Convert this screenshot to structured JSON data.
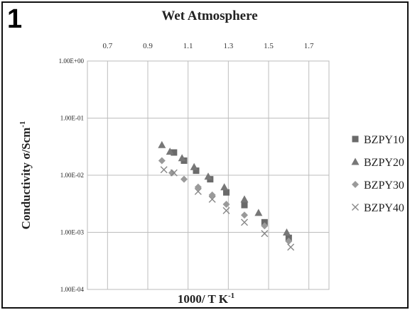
{
  "figure": {
    "panel_label": "1"
  },
  "chart_data": {
    "type": "scatter",
    "title": "Wet Atmosphere",
    "xlabel": "1000/ T K",
    "xlabel_sup": "-1",
    "ylabel": "Conductivity σ/Scm",
    "ylabel_sup": "-1",
    "x_axis_position": "top",
    "xlim": [
      0.6,
      1.8
    ],
    "xticks": [
      "0.7",
      "0.9",
      "1.1",
      "1.3",
      "1.5",
      "1.7"
    ],
    "y_scale": "log",
    "ylim": [
      0.0001,
      1
    ],
    "yticks": [
      "1.00E+00",
      "1.00E-01",
      "1.00E-02",
      "1.00E-03",
      "1.00E-04"
    ],
    "grid": true,
    "legend_position": "right",
    "series": [
      {
        "name": "BZPY10",
        "marker": "square",
        "color": "#6a6a6a",
        "points": [
          {
            "x": 1.03,
            "y": 0.025
          },
          {
            "x": 1.08,
            "y": 0.018
          },
          {
            "x": 1.14,
            "y": 0.012
          },
          {
            "x": 1.21,
            "y": 0.0085
          },
          {
            "x": 1.29,
            "y": 0.005
          },
          {
            "x": 1.38,
            "y": 0.003
          },
          {
            "x": 1.48,
            "y": 0.0015
          },
          {
            "x": 1.6,
            "y": 0.0008
          }
        ]
      },
      {
        "name": "BZPY20",
        "marker": "triangle",
        "color": "#777777",
        "points": [
          {
            "x": 0.97,
            "y": 0.034
          },
          {
            "x": 1.01,
            "y": 0.026
          },
          {
            "x": 1.07,
            "y": 0.02
          },
          {
            "x": 1.13,
            "y": 0.014
          },
          {
            "x": 1.2,
            "y": 0.0095
          },
          {
            "x": 1.28,
            "y": 0.0062
          },
          {
            "x": 1.38,
            "y": 0.0038
          },
          {
            "x": 1.45,
            "y": 0.0022
          },
          {
            "x": 1.59,
            "y": 0.001
          }
        ]
      },
      {
        "name": "BZPY30",
        "marker": "diamond",
        "color": "#9a9a9a",
        "points": [
          {
            "x": 0.97,
            "y": 0.018
          },
          {
            "x": 1.02,
            "y": 0.011
          },
          {
            "x": 1.08,
            "y": 0.0085
          },
          {
            "x": 1.15,
            "y": 0.0062
          },
          {
            "x": 1.22,
            "y": 0.0045
          },
          {
            "x": 1.29,
            "y": 0.0031
          },
          {
            "x": 1.38,
            "y": 0.002
          },
          {
            "x": 1.48,
            "y": 0.0013
          },
          {
            "x": 1.6,
            "y": 0.0007
          }
        ]
      },
      {
        "name": "BZPY40",
        "marker": "x",
        "color": "#888888",
        "points": [
          {
            "x": 0.98,
            "y": 0.0125
          },
          {
            "x": 1.03,
            "y": 0.011
          },
          {
            "x": 1.15,
            "y": 0.0052
          },
          {
            "x": 1.22,
            "y": 0.0038
          },
          {
            "x": 1.29,
            "y": 0.0024
          },
          {
            "x": 1.38,
            "y": 0.0015
          },
          {
            "x": 1.48,
            "y": 0.00095
          },
          {
            "x": 1.61,
            "y": 0.00055
          }
        ]
      }
    ]
  }
}
